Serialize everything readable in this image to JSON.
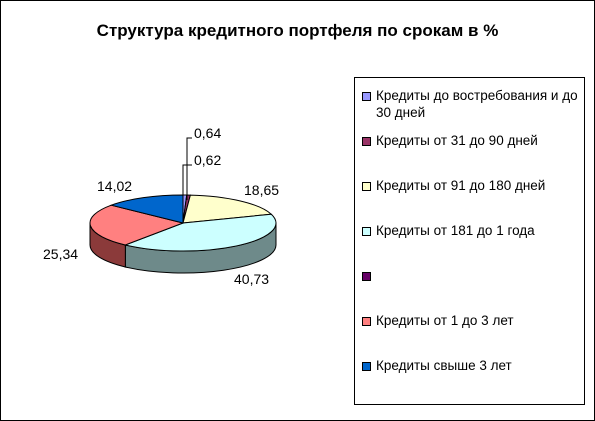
{
  "chart_data": {
    "type": "pie",
    "title": "Структура кредитного портфеля по срокам в %",
    "style": "3d-exploded",
    "legend_position": "right",
    "categories": [
      "Кредиты до востребования и до 30 дней",
      "Кредиты от 31 до 90 дней",
      "Кредиты от 91 до 180 дней",
      "Кредиты от 181 до 1 года",
      "",
      "Кредиты от 1 до 3 лет",
      "Кредиты свыше 3 лет"
    ],
    "values": [
      0.64,
      0.62,
      18.65,
      40.73,
      null,
      25.34,
      14.02
    ],
    "data_labels": [
      "0,64",
      "0,62",
      "18,65",
      "40,73",
      "",
      "25,34",
      "14,02"
    ],
    "colors": [
      "#9999FF",
      "#993366",
      "#FFFFCC",
      "#CCFFFF",
      "#660066",
      "#FF8080",
      "#0066CC"
    ],
    "side_colors": [
      "#5C5C99",
      "#5C1F3D",
      "#99997A",
      "#6E8A8A",
      "#3D003D",
      "#8B3A3A",
      "#003D7A"
    ]
  }
}
